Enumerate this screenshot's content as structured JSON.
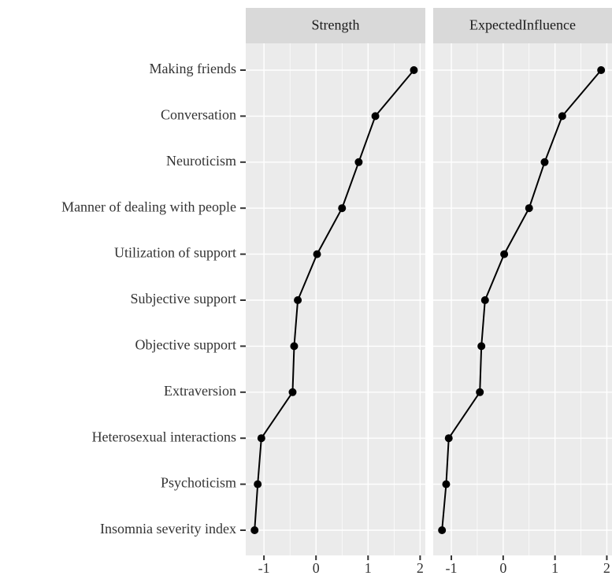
{
  "chart_data": {
    "type": "line",
    "categories": [
      "Making friends",
      "Conversation",
      "Neuroticism",
      "Manner of dealing with people",
      "Utilization of support",
      "Subjective support",
      "Objective support",
      "Extraversion",
      "Heterosexual interactions",
      "Psychoticism",
      "Insomnia severity index"
    ],
    "series": [
      {
        "name": "Strength",
        "color": "#000000",
        "values": [
          1.88,
          1.14,
          0.82,
          0.5,
          0.02,
          -0.35,
          -0.42,
          -0.45,
          -1.05,
          -1.12,
          -1.18
        ]
      },
      {
        "name": "ExpectedInfluence",
        "color": "#000000",
        "values": [
          1.89,
          1.14,
          0.8,
          0.5,
          0.02,
          -0.35,
          -0.42,
          -0.45,
          -1.05,
          -1.1,
          -1.18
        ]
      }
    ],
    "xlim": [
      -1.35,
      2.1
    ],
    "xticks": [
      -1,
      0,
      1,
      2
    ],
    "grid": true
  }
}
